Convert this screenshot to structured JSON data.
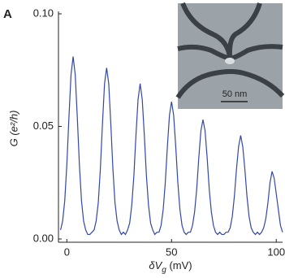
{
  "chart_data": {
    "type": "line",
    "panel_label": "A",
    "x_label": {
      "main": "δV",
      "sub": "g",
      "unit": " (mV)"
    },
    "y_label": "G (e²/h)",
    "inset_scale_label": "50 nm",
    "x": [
      -3,
      -2,
      -1,
      0,
      1,
      2,
      3,
      4,
      5,
      6,
      7,
      8,
      9,
      10,
      11,
      12,
      13,
      14,
      15,
      16,
      17,
      18,
      19,
      20,
      21,
      22,
      23,
      24,
      25,
      26,
      27,
      28,
      29,
      30,
      31,
      32,
      33,
      34,
      35,
      36,
      37,
      38,
      39,
      40,
      41,
      42,
      43,
      44,
      45,
      46,
      47,
      48,
      49,
      50,
      51,
      52,
      53,
      54,
      55,
      56,
      57,
      58,
      59,
      60,
      61,
      62,
      63,
      64,
      65,
      66,
      67,
      68,
      69,
      70,
      71,
      72,
      73,
      74,
      75,
      76,
      77,
      78,
      79,
      80,
      81,
      82,
      83,
      84,
      85,
      86,
      87,
      88,
      89,
      90,
      91,
      92,
      93,
      94,
      95,
      96,
      97,
      98,
      99,
      100,
      101,
      102,
      103
    ],
    "series": [
      {
        "color": "#3347a8",
        "values": [
          0.004,
          0.008,
          0.017,
          0.033,
          0.054,
          0.073,
          0.081,
          0.073,
          0.054,
          0.033,
          0.017,
          0.008,
          0.004,
          0.002,
          0.002,
          0.003,
          0.004,
          0.008,
          0.016,
          0.031,
          0.051,
          0.069,
          0.076,
          0.069,
          0.051,
          0.031,
          0.016,
          0.008,
          0.004,
          0.002,
          0.003,
          0.002,
          0.004,
          0.007,
          0.015,
          0.028,
          0.046,
          0.062,
          0.069,
          0.062,
          0.046,
          0.028,
          0.015,
          0.007,
          0.004,
          0.002,
          0.003,
          0.003,
          0.006,
          0.013,
          0.025,
          0.041,
          0.055,
          0.061,
          0.055,
          0.041,
          0.025,
          0.013,
          0.006,
          0.003,
          0.002,
          0.003,
          0.003,
          0.006,
          0.012,
          0.022,
          0.036,
          0.048,
          0.053,
          0.048,
          0.036,
          0.022,
          0.012,
          0.006,
          0.003,
          0.002,
          0.003,
          0.002,
          0.002,
          0.003,
          0.003,
          0.005,
          0.01,
          0.019,
          0.031,
          0.041,
          0.046,
          0.041,
          0.031,
          0.019,
          0.01,
          0.005,
          0.003,
          0.002,
          0.003,
          0.002,
          0.003,
          0.005,
          0.009,
          0.016,
          0.025,
          0.03,
          0.027,
          0.02,
          0.013,
          0.006,
          0.003
        ]
      }
    ],
    "xlim": [
      -4,
      103
    ],
    "ylim": [
      0,
      0.1
    ],
    "xticks": [
      0,
      50,
      100
    ],
    "yticks": [
      {
        "value": 0,
        "label": "0.00"
      },
      {
        "value": 0.05,
        "label": "0.05"
      },
      {
        "value": 0.1,
        "label": "0.10"
      }
    ]
  }
}
